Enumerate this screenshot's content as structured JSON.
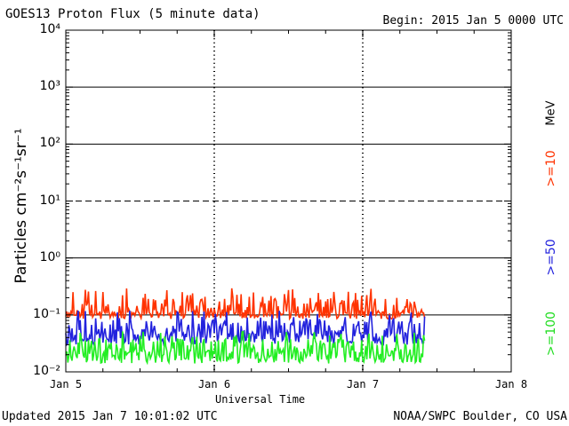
{
  "header": {
    "title": "GOES13 Proton Flux (5 minute data)",
    "begin": "Begin: 2015 Jan 5 0000 UTC"
  },
  "footer": {
    "updated": "Updated 2015 Jan  7 10:01:02 UTC",
    "credit": "NOAA/SWPC Boulder, CO USA"
  },
  "chart_data": {
    "type": "line",
    "title": "GOES13 Proton Flux (5 minute data)",
    "xlabel": "Universal Time",
    "ylabel": "Particles cm⁻²s⁻¹sr⁻¹",
    "yscale": "log",
    "ylim": [
      0.01,
      10000
    ],
    "xlim": [
      "2015-01-05T00:00Z",
      "2015-01-08T00:00Z"
    ],
    "x_ticks": [
      "Jan 5",
      "Jan 6",
      "Jan 7",
      "Jan 8"
    ],
    "y_ticks": [
      "10⁻²",
      "10⁻¹",
      "10⁰",
      "10¹",
      "10²",
      "10³",
      "10⁴"
    ],
    "y_tick_values": [
      0.01,
      0.1,
      1,
      10,
      100,
      1000,
      10000
    ],
    "threshold_lines": [
      {
        "value": 10,
        "style": "dashed"
      }
    ],
    "units_label": "MeV",
    "data_end": "2015-01-07T10:00Z",
    "series": [
      {
        "name": ">=10",
        "color": "#ff3300",
        "level_min": 0.085,
        "level_max": 0.3,
        "level_typical": 0.11
      },
      {
        "name": ">=50",
        "color": "#2222dd",
        "level_min": 0.03,
        "level_max": 0.12,
        "level_typical": 0.045
      },
      {
        "name": ">=100",
        "color": "#22ee22",
        "level_min": 0.014,
        "level_max": 0.055,
        "level_typical": 0.022
      }
    ]
  }
}
